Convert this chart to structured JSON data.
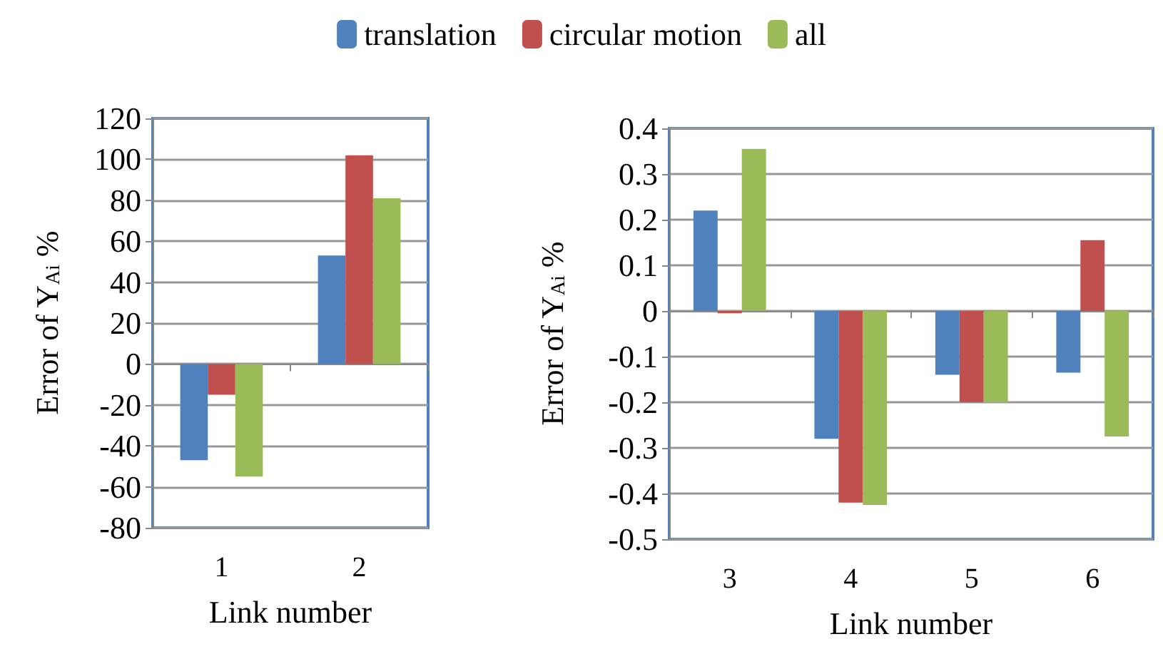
{
  "chart_data": [
    {
      "type": "bar",
      "categories": [
        "1",
        "2"
      ],
      "xlabel": "Link number",
      "ylabel": "Error of Y$_{Ai}$ %",
      "ylim": [
        -80,
        120
      ],
      "yticks": [
        -80,
        -60,
        -40,
        -20,
        0,
        20,
        40,
        60,
        80,
        100,
        120
      ],
      "grid": "y",
      "legend": "top",
      "series": [
        {
          "name": "translation",
          "color": "#4f81bd",
          "values": [
            -47,
            53
          ]
        },
        {
          "name": "circular motion",
          "color": "#c0504d",
          "values": [
            -15,
            102
          ]
        },
        {
          "name": "all",
          "color": "#9bbb59",
          "values": [
            -55,
            81
          ]
        }
      ]
    },
    {
      "type": "bar",
      "categories": [
        "3",
        "4",
        "5",
        "6"
      ],
      "xlabel": "Link number",
      "ylabel": "Error of Y$_{Ai}$ %",
      "ylim": [
        -0.5,
        0.4
      ],
      "yticks": [
        -0.5,
        -0.4,
        -0.3,
        -0.2,
        -0.1,
        0,
        0.1,
        0.2,
        0.3,
        0.4
      ],
      "grid": "y",
      "series": [
        {
          "color": "#4f81bd",
          "values": [
            0.22,
            -0.28,
            -0.14,
            -0.135
          ]
        },
        {
          "color": "#c0504d",
          "values": [
            -0.005,
            -0.42,
            -0.2,
            0.155
          ]
        },
        {
          "color": "#9bbb59",
          "values": [
            0.355,
            -0.425,
            -0.2,
            -0.275
          ]
        }
      ]
    }
  ]
}
